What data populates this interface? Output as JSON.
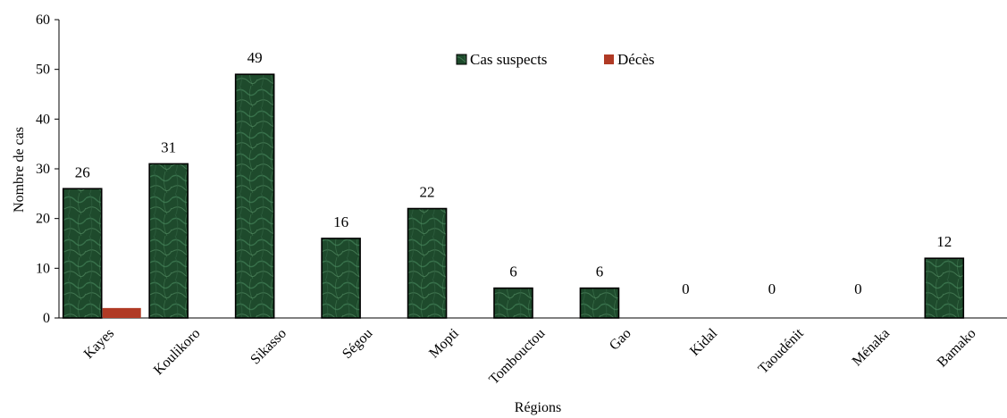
{
  "chart_data": {
    "type": "bar",
    "xlabel": "Régions",
    "ylabel": "Nombre de cas",
    "ylim": [
      0,
      60
    ],
    "yticks": [
      0,
      10,
      20,
      30,
      40,
      50,
      60
    ],
    "grid": false,
    "legend_position": "top-center",
    "categories": [
      "Kayes",
      "Koulikoro",
      "Sikasso",
      "Ségou",
      "Mopti",
      "Tombouctou",
      "Gao",
      "Kidal",
      "Taoudénit",
      "Ménaka",
      "Bamako"
    ],
    "series": [
      {
        "name": "Cas suspects",
        "color": "#1e4a2c",
        "values": [
          26,
          31,
          49,
          16,
          22,
          6,
          6,
          0,
          0,
          0,
          12
        ],
        "data_labels": [
          "26",
          "31",
          "49",
          "16",
          "22",
          "6",
          "6",
          "0",
          "0",
          "0",
          "12"
        ]
      },
      {
        "name": "Décès",
        "color": "#b03a25",
        "values": [
          2,
          0,
          0,
          0,
          0,
          0,
          0,
          0,
          0,
          0,
          0
        ]
      }
    ]
  }
}
